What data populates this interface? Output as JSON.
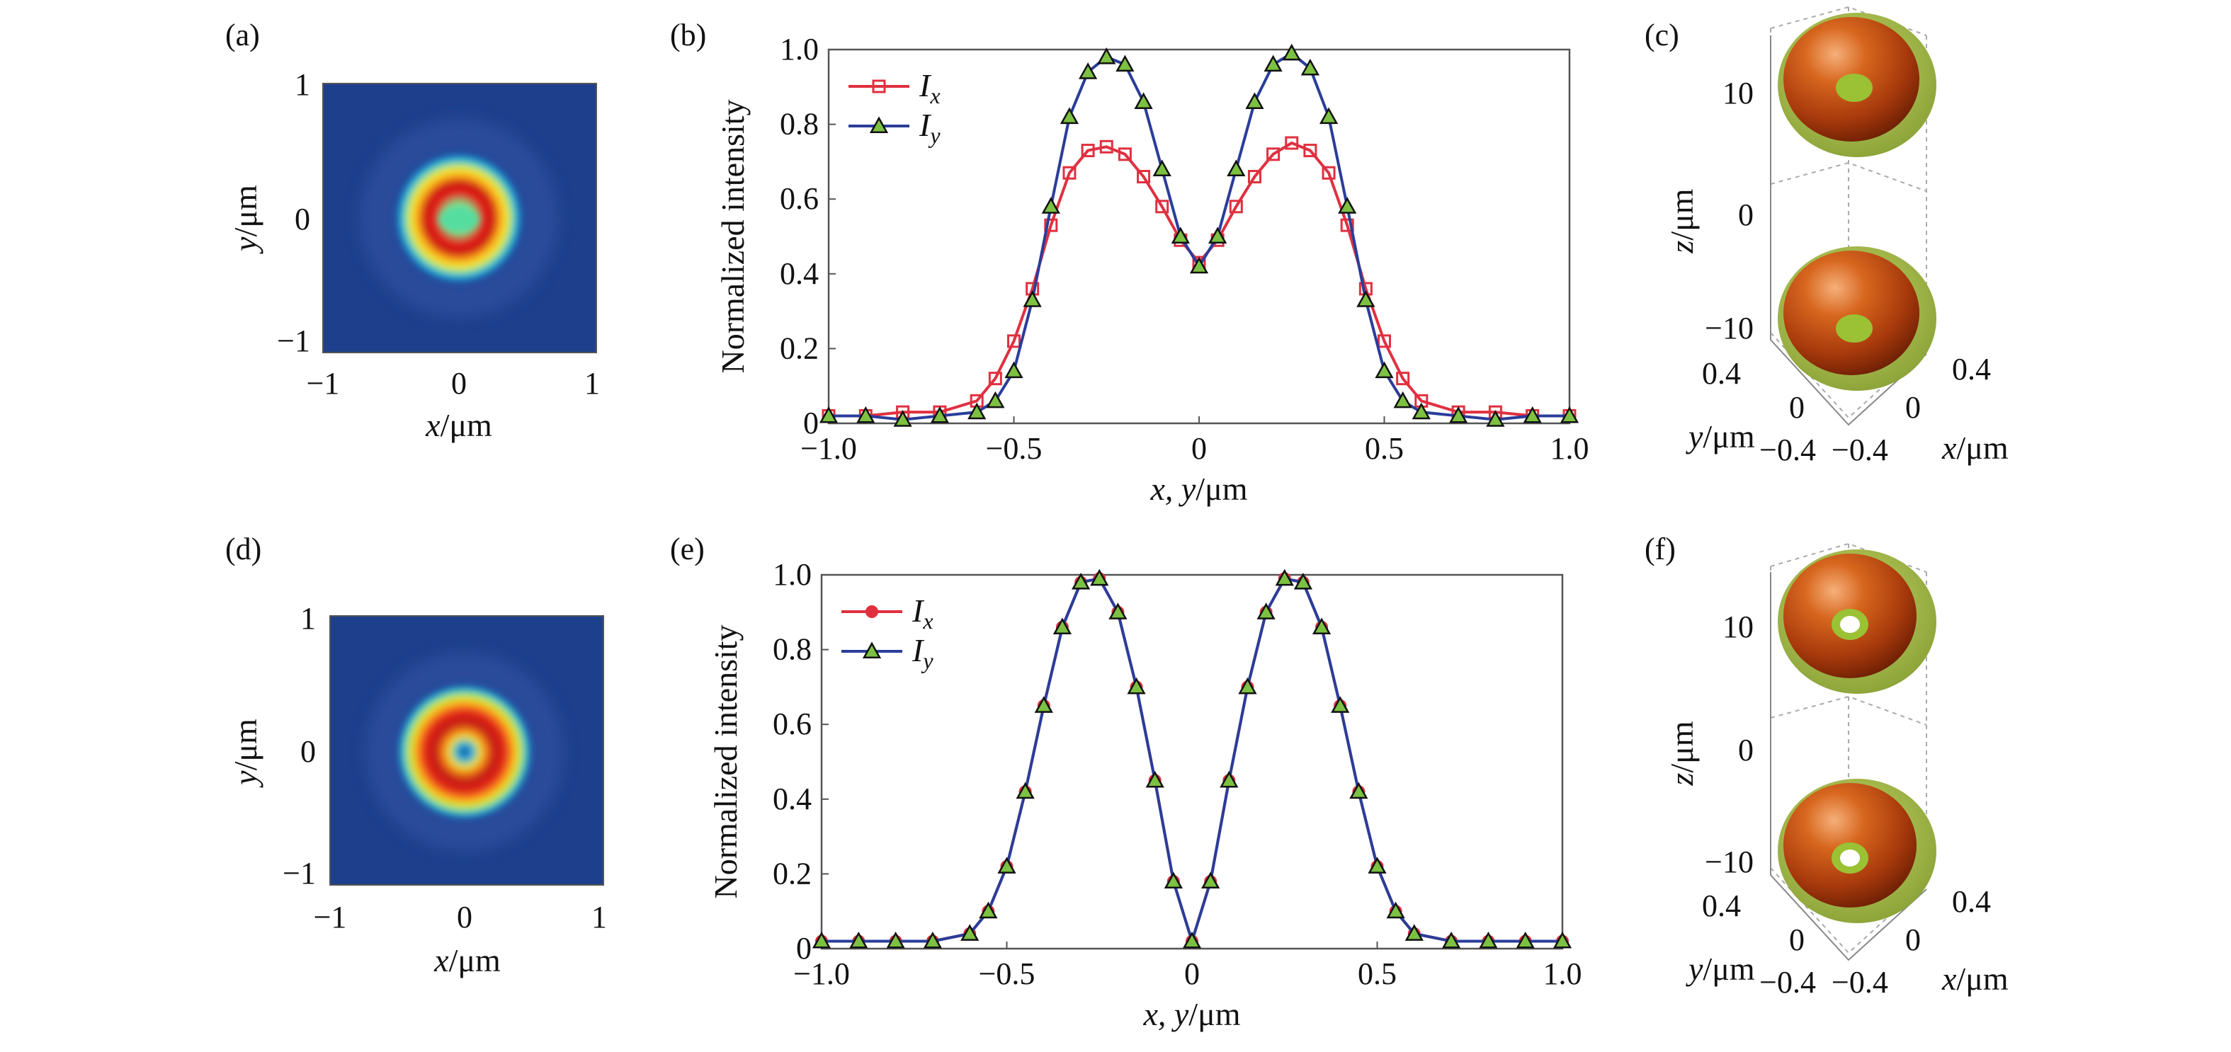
{
  "panels": {
    "a": {
      "label": "(a)",
      "xlabel_var": "x",
      "xlabel_unit": "/μm",
      "ylabel_var": "y",
      "ylabel_unit": "/μm",
      "xticks": [
        "−1",
        "0",
        "1"
      ],
      "yticks": [
        "1",
        "0",
        "−1"
      ]
    },
    "c": {
      "label": "(c)",
      "zlabel_var": "z",
      "zlabel_unit": "/μm",
      "zticks": [
        "10",
        "0",
        "−10"
      ],
      "yticks": [
        "0.4",
        "0",
        "−0.4"
      ],
      "xticks": [
        "0.4",
        "0",
        "−0.4"
      ],
      "xlabel_var": "x",
      "xlabel_unit": "/μm",
      "ylabel_var": "y",
      "ylabel_unit": "/μm"
    },
    "d": {
      "label": "(d)",
      "xlabel_var": "x",
      "xlabel_unit": "/μm",
      "ylabel_var": "y",
      "ylabel_unit": "/μm",
      "xticks": [
        "−1",
        "0",
        "1"
      ],
      "yticks": [
        "1",
        "0",
        "−1"
      ]
    },
    "f": {
      "label": "(f)",
      "zlabel_var": "z",
      "zlabel_unit": "/μm",
      "zticks": [
        "10",
        "0",
        "−10"
      ],
      "yticks": [
        "0.4",
        "0",
        "−0.4"
      ],
      "xticks": [
        "0.4",
        "0",
        "−0.4"
      ],
      "xlabel_var": "x",
      "xlabel_unit": "/μm",
      "ylabel_var": "y",
      "ylabel_unit": "/μm"
    }
  },
  "chart_data": [
    {
      "panel": "(b)",
      "type": "line",
      "ylabel": "Normalized intensity",
      "xlabel_vars": "x, y",
      "xlabel_unit": "/μm",
      "xlim": [
        -1.0,
        1.0
      ],
      "ylim": [
        0,
        1.0
      ],
      "xticks": [
        "−1.0",
        "−0.5",
        "0",
        "0.5",
        "1.0"
      ],
      "yticks": [
        "0",
        "0.2",
        "0.4",
        "0.6",
        "0.8",
        "1.0"
      ],
      "legend_position": "top-left",
      "series": [
        {
          "name": "I",
          "subscript": "x",
          "color": "#e03040",
          "marker": "square-open",
          "x": [
            -1.0,
            -0.9,
            -0.8,
            -0.7,
            -0.6,
            -0.55,
            -0.5,
            -0.45,
            -0.4,
            -0.35,
            -0.3,
            -0.25,
            -0.2,
            -0.15,
            -0.1,
            -0.05,
            0,
            0.05,
            0.1,
            0.15,
            0.2,
            0.25,
            0.3,
            0.35,
            0.4,
            0.45,
            0.5,
            0.55,
            0.6,
            0.7,
            0.8,
            0.9,
            1.0
          ],
          "y": [
            0.02,
            0.02,
            0.03,
            0.03,
            0.06,
            0.12,
            0.22,
            0.36,
            0.53,
            0.67,
            0.73,
            0.74,
            0.72,
            0.66,
            0.58,
            0.49,
            0.43,
            0.49,
            0.58,
            0.66,
            0.72,
            0.75,
            0.73,
            0.67,
            0.53,
            0.36,
            0.22,
            0.12,
            0.06,
            0.03,
            0.03,
            0.02,
            0.02
          ]
        },
        {
          "name": "I",
          "subscript": "y",
          "color": "#2a3d9a",
          "marker": "triangle-green",
          "x": [
            -1.0,
            -0.9,
            -0.8,
            -0.7,
            -0.6,
            -0.55,
            -0.5,
            -0.45,
            -0.4,
            -0.35,
            -0.3,
            -0.25,
            -0.2,
            -0.15,
            -0.1,
            -0.05,
            0,
            0.05,
            0.1,
            0.15,
            0.2,
            0.25,
            0.3,
            0.35,
            0.4,
            0.45,
            0.5,
            0.55,
            0.6,
            0.7,
            0.8,
            0.9,
            1.0
          ],
          "y": [
            0.02,
            0.02,
            0.01,
            0.02,
            0.03,
            0.06,
            0.14,
            0.33,
            0.58,
            0.82,
            0.94,
            0.98,
            0.96,
            0.86,
            0.68,
            0.5,
            0.42,
            0.5,
            0.68,
            0.86,
            0.96,
            0.99,
            0.95,
            0.82,
            0.58,
            0.33,
            0.14,
            0.06,
            0.03,
            0.02,
            0.01,
            0.02,
            0.02
          ]
        }
      ]
    },
    {
      "panel": "(e)",
      "type": "line",
      "ylabel": "Normalized intensity",
      "xlabel_vars": "x, y",
      "xlabel_unit": "/μm",
      "xlim": [
        -1.0,
        1.0
      ],
      "ylim": [
        0,
        1.0
      ],
      "xticks": [
        "−1.0",
        "−0.5",
        "0",
        "0.5",
        "1.0"
      ],
      "yticks": [
        "0",
        "0.2",
        "0.4",
        "0.6",
        "0.8",
        "1.0"
      ],
      "legend_position": "top-left",
      "series": [
        {
          "name": "I",
          "subscript": "x",
          "color": "#e03040",
          "marker": "filled-circle",
          "x": [
            -1.0,
            -0.9,
            -0.8,
            -0.7,
            -0.6,
            -0.55,
            -0.5,
            -0.45,
            -0.4,
            -0.35,
            -0.3,
            -0.25,
            -0.2,
            -0.15,
            -0.1,
            -0.05,
            0,
            0.05,
            0.1,
            0.15,
            0.2,
            0.25,
            0.3,
            0.35,
            0.4,
            0.45,
            0.5,
            0.55,
            0.6,
            0.7,
            0.8,
            0.9,
            1.0
          ],
          "y": [
            0.02,
            0.02,
            0.02,
            0.02,
            0.04,
            0.1,
            0.22,
            0.42,
            0.65,
            0.86,
            0.98,
            0.99,
            0.9,
            0.7,
            0.45,
            0.18,
            0.02,
            0.18,
            0.45,
            0.7,
            0.9,
            0.99,
            0.98,
            0.86,
            0.65,
            0.42,
            0.22,
            0.1,
            0.04,
            0.02,
            0.02,
            0.02,
            0.02
          ]
        },
        {
          "name": "I",
          "subscript": "y",
          "color": "#2a3d9a",
          "marker": "triangle-green",
          "x": [
            -1.0,
            -0.9,
            -0.8,
            -0.7,
            -0.6,
            -0.55,
            -0.5,
            -0.45,
            -0.4,
            -0.35,
            -0.3,
            -0.25,
            -0.2,
            -0.15,
            -0.1,
            -0.05,
            0,
            0.05,
            0.1,
            0.15,
            0.2,
            0.25,
            0.3,
            0.35,
            0.4,
            0.45,
            0.5,
            0.55,
            0.6,
            0.7,
            0.8,
            0.9,
            1.0
          ],
          "y": [
            0.02,
            0.02,
            0.02,
            0.02,
            0.04,
            0.1,
            0.22,
            0.42,
            0.65,
            0.86,
            0.98,
            0.99,
            0.9,
            0.7,
            0.45,
            0.18,
            0.02,
            0.18,
            0.45,
            0.7,
            0.9,
            0.99,
            0.98,
            0.86,
            0.65,
            0.42,
            0.22,
            0.1,
            0.04,
            0.02,
            0.02,
            0.02,
            0.02
          ]
        }
      ]
    }
  ]
}
